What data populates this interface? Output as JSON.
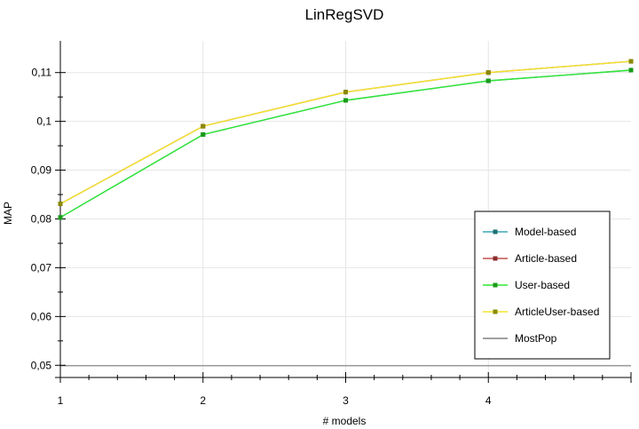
{
  "chart_data": {
    "type": "line",
    "title": "LinRegSVD",
    "xlabel": "# models",
    "ylabel": "MAP",
    "x": [
      1,
      2,
      3,
      4,
      5
    ],
    "xlim": [
      1,
      5
    ],
    "ylim": [
      0.0475,
      0.1165
    ],
    "x_ticks": [
      1,
      2,
      3,
      4
    ],
    "x_tick_labels": [
      "1",
      "2",
      "3",
      "4"
    ],
    "y_ticks": [
      0.05,
      0.06,
      0.07,
      0.08,
      0.09,
      0.1,
      0.11
    ],
    "y_tick_labels": [
      "0,05",
      "0,06",
      "0,07",
      "0,08",
      "0,09",
      "0,1",
      "0,11"
    ],
    "grid": true,
    "legend_position": "right",
    "series": [
      {
        "name": "Model-based",
        "color": "#3aa7b8",
        "marker_color": "#1f6f6f",
        "values": [
          0.0803,
          0.0973,
          0.1043,
          0.1083,
          0.1105
        ]
      },
      {
        "name": "Article-based",
        "color": "#c0504d",
        "marker_color": "#8b2c2c",
        "values": [
          0.0831,
          0.099,
          0.106,
          0.11,
          0.1123
        ]
      },
      {
        "name": "User-based",
        "color": "#33e633",
        "marker_color": "#1a9a1a",
        "values": [
          0.0803,
          0.0973,
          0.1043,
          0.1083,
          0.1105
        ]
      },
      {
        "name": "ArticleUser-based",
        "color": "#f2e62a",
        "marker_color": "#8a8a00",
        "values": [
          0.0831,
          0.099,
          0.106,
          0.11,
          0.1123
        ]
      },
      {
        "name": "MostPop",
        "color": "#808080",
        "baseline": true,
        "values": [
          0.0499,
          0.0499,
          0.0499,
          0.0499,
          0.0499
        ]
      }
    ]
  }
}
